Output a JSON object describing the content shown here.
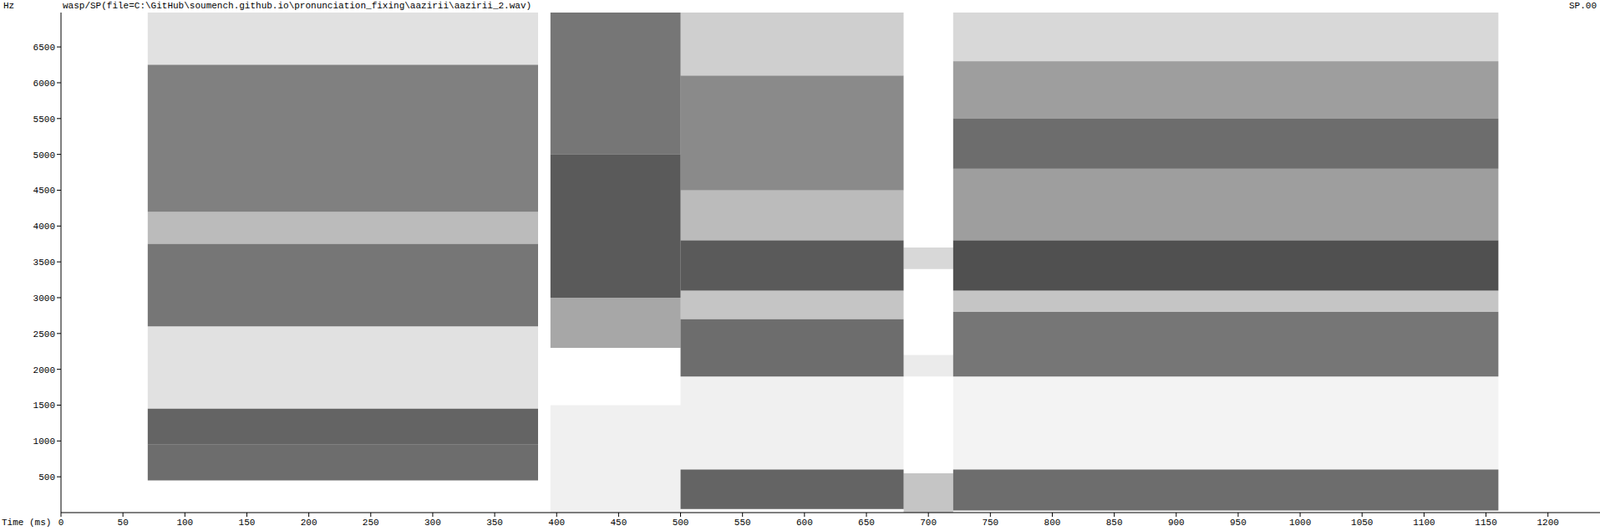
{
  "chart_data": {
    "type": "spectrogram",
    "title": "wasp/SP(file=C:\\GitHub\\soumench.github.io\\pronunciation_fixing\\aazirii\\aazirii_2.wav)",
    "subtitle": "SP.00",
    "x_label": "Time (ms)",
    "y_label": "Hz",
    "xlim": [
      0,
      1242
    ],
    "ylim": [
      0,
      6980
    ],
    "xticks": [
      0,
      50,
      100,
      150,
      200,
      250,
      300,
      350,
      400,
      450,
      500,
      550,
      600,
      650,
      700,
      750,
      800,
      850,
      900,
      950,
      1000,
      1050,
      1100,
      1150,
      1200
    ],
    "yticks": [
      500,
      1000,
      1500,
      2000,
      2500,
      3000,
      3500,
      4000,
      4500,
      5000,
      5500,
      6000,
      6500
    ],
    "color": "#1a1a1a",
    "grid": false,
    "cells": [
      {
        "t0": 70,
        "t1": 385,
        "f0": 450,
        "f1": 950,
        "level": 0.75
      },
      {
        "t0": 70,
        "t1": 385,
        "f0": 950,
        "f1": 1450,
        "level": 0.8
      },
      {
        "t0": 70,
        "t1": 385,
        "f0": 1450,
        "f1": 2600,
        "level": 0.15
      },
      {
        "t0": 70,
        "t1": 385,
        "f0": 2600,
        "f1": 3750,
        "level": 0.7
      },
      {
        "t0": 70,
        "t1": 385,
        "f0": 3750,
        "f1": 4200,
        "level": 0.35
      },
      {
        "t0": 70,
        "t1": 385,
        "f0": 4200,
        "f1": 6250,
        "level": 0.65
      },
      {
        "t0": 70,
        "t1": 385,
        "f0": 6250,
        "f1": 6980,
        "level": 0.15
      },
      {
        "t0": 395,
        "t1": 500,
        "f0": 0,
        "f1": 1500,
        "level": 0.08
      },
      {
        "t0": 395,
        "t1": 500,
        "f0": 2300,
        "f1": 3000,
        "level": 0.45
      },
      {
        "t0": 395,
        "t1": 500,
        "f0": 3000,
        "f1": 5000,
        "level": 0.85
      },
      {
        "t0": 395,
        "t1": 500,
        "f0": 5000,
        "f1": 6980,
        "level": 0.7
      },
      {
        "t0": 500,
        "t1": 680,
        "f0": 50,
        "f1": 600,
        "level": 0.8
      },
      {
        "t0": 500,
        "t1": 680,
        "f0": 600,
        "f1": 1900,
        "level": 0.08
      },
      {
        "t0": 500,
        "t1": 680,
        "f0": 1900,
        "f1": 2700,
        "level": 0.75
      },
      {
        "t0": 500,
        "t1": 680,
        "f0": 2700,
        "f1": 3100,
        "level": 0.3
      },
      {
        "t0": 500,
        "t1": 680,
        "f0": 3100,
        "f1": 3800,
        "level": 0.85
      },
      {
        "t0": 500,
        "t1": 680,
        "f0": 3800,
        "f1": 4500,
        "level": 0.35
      },
      {
        "t0": 500,
        "t1": 680,
        "f0": 4500,
        "f1": 6100,
        "level": 0.6
      },
      {
        "t0": 500,
        "t1": 680,
        "f0": 6100,
        "f1": 6980,
        "level": 0.25
      },
      {
        "t0": 680,
        "t1": 720,
        "f0": 0,
        "f1": 550,
        "level": 0.3
      },
      {
        "t0": 680,
        "t1": 720,
        "f0": 1900,
        "f1": 2200,
        "level": 0.1
      },
      {
        "t0": 680,
        "t1": 720,
        "f0": 3400,
        "f1": 3700,
        "level": 0.2
      },
      {
        "t0": 720,
        "t1": 1160,
        "f0": 30,
        "f1": 600,
        "level": 0.75
      },
      {
        "t0": 720,
        "t1": 1160,
        "f0": 600,
        "f1": 1900,
        "level": 0.06
      },
      {
        "t0": 720,
        "t1": 1160,
        "f0": 1900,
        "f1": 2800,
        "level": 0.7
      },
      {
        "t0": 720,
        "t1": 1160,
        "f0": 2800,
        "f1": 3100,
        "level": 0.3
      },
      {
        "t0": 720,
        "t1": 1160,
        "f0": 3100,
        "f1": 3800,
        "level": 0.9
      },
      {
        "t0": 720,
        "t1": 1160,
        "f0": 3800,
        "f1": 4800,
        "level": 0.5
      },
      {
        "t0": 720,
        "t1": 1160,
        "f0": 4800,
        "f1": 5500,
        "level": 0.75
      },
      {
        "t0": 720,
        "t1": 1160,
        "f0": 5500,
        "f1": 6300,
        "level": 0.5
      },
      {
        "t0": 720,
        "t1": 1160,
        "f0": 6300,
        "f1": 6980,
        "level": 0.2
      }
    ]
  }
}
